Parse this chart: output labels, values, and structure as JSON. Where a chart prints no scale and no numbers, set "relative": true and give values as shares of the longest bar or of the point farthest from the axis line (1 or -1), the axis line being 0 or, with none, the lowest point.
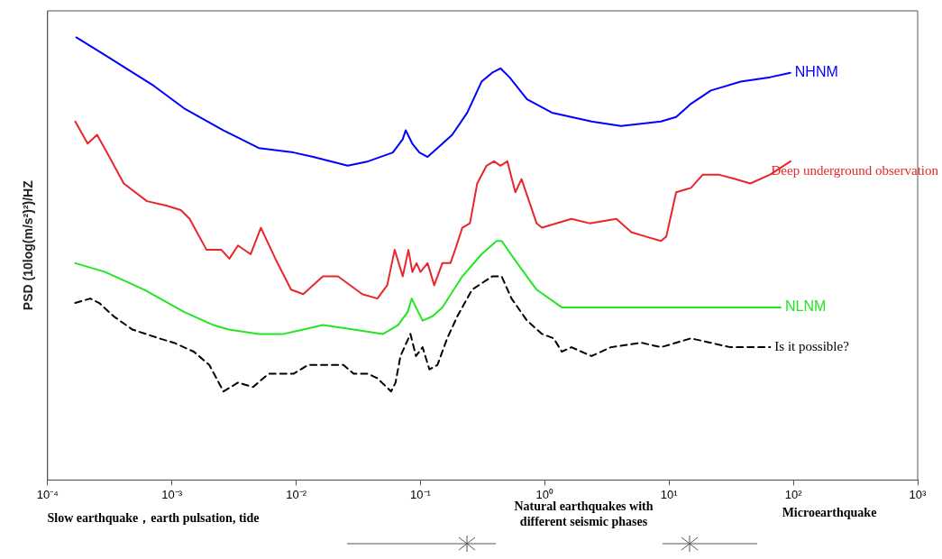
{
  "chart_data": {
    "type": "line",
    "relative": true,
    "ylabel": "PSD (10log(m/s²)²)/HZ",
    "log": "x",
    "grid": false,
    "legend": false,
    "marker": "none",
    "xlim": [
      0.0001,
      1000
    ],
    "xticks": [
      {
        "value": 0.0001,
        "label": "10⁻⁴"
      },
      {
        "value": 0.001,
        "label": "10⁻³"
      },
      {
        "value": 0.01,
        "label": "10⁻²"
      },
      {
        "value": 0.1,
        "label": "10⁻¹"
      },
      {
        "value": 1,
        "label": "10⁰"
      },
      {
        "value": 10,
        "label": "10¹"
      },
      {
        "value": 100,
        "label": "10²"
      },
      {
        "value": 1000,
        "label": "10³"
      }
    ],
    "series": [
      {
        "name": "NHNM",
        "color": "#0000ff",
        "line_style": "solid",
        "x": [
          0.00017,
          0.00029,
          0.00072,
          0.00125,
          0.0026,
          0.005,
          0.0095,
          0.0137,
          0.026,
          0.038,
          0.06,
          0.072,
          0.076,
          0.086,
          0.098,
          0.114,
          0.137,
          0.18,
          0.238,
          0.31,
          0.377,
          0.44,
          0.52,
          0.72,
          1.14,
          2.38,
          4.1,
          8.6,
          11.4,
          15,
          21.7,
          37.7,
          65,
          94.6
        ],
        "values": [
          1.0,
          0.96,
          0.89,
          0.84,
          0.79,
          0.75,
          0.74,
          0.73,
          0.71,
          0.72,
          0.74,
          0.77,
          0.79,
          0.76,
          0.74,
          0.73,
          0.75,
          0.78,
          0.83,
          0.9,
          0.92,
          0.93,
          0.91,
          0.86,
          0.83,
          0.81,
          0.8,
          0.81,
          0.82,
          0.85,
          0.88,
          0.9,
          0.91,
          0.92
        ]
      },
      {
        "name": "Deep underground observation",
        "color": "#e8262b",
        "line_style": "solid",
        "x": [
          0.000167,
          0.00021,
          0.00025,
          0.0003,
          0.00041,
          0.00063,
          0.0009,
          0.00118,
          0.00139,
          0.0019,
          0.0023,
          0.0025,
          0.0029,
          0.0034,
          0.0043,
          0.0052,
          0.0068,
          0.0091,
          0.0114,
          0.0164,
          0.0217,
          0.034,
          0.045,
          0.054,
          0.062,
          0.072,
          0.08,
          0.086,
          0.093,
          0.1,
          0.114,
          0.129,
          0.15,
          0.174,
          0.19,
          0.217,
          0.25,
          0.286,
          0.34,
          0.39,
          0.44,
          0.5,
          0.58,
          0.65,
          0.86,
          0.95,
          1.64,
          2.29,
          3.77,
          4.97,
          6.5,
          8.6,
          9.5,
          11.4,
          15,
          18.7,
          25,
          34,
          45,
          65,
          95
        ],
        "values": [
          0.81,
          0.76,
          0.78,
          0.74,
          0.67,
          0.63,
          0.62,
          0.61,
          0.59,
          0.52,
          0.52,
          0.52,
          0.5,
          0.53,
          0.51,
          0.57,
          0.5,
          0.43,
          0.42,
          0.46,
          0.46,
          0.42,
          0.41,
          0.44,
          0.52,
          0.46,
          0.52,
          0.47,
          0.49,
          0.47,
          0.49,
          0.44,
          0.49,
          0.49,
          0.52,
          0.57,
          0.58,
          0.67,
          0.71,
          0.72,
          0.71,
          0.72,
          0.65,
          0.68,
          0.58,
          0.57,
          0.59,
          0.58,
          0.59,
          0.56,
          0.55,
          0.54,
          0.55,
          0.65,
          0.66,
          0.69,
          0.69,
          0.68,
          0.67,
          0.69,
          0.72
        ]
      },
      {
        "name": "NLNM",
        "color": "#22e622",
        "line_style": "solid",
        "x": [
          0.000167,
          0.00029,
          0.0006,
          0.00125,
          0.00216,
          0.00286,
          0.005,
          0.0079,
          0.0114,
          0.0164,
          0.029,
          0.05,
          0.066,
          0.079,
          0.085,
          0.092,
          0.104,
          0.125,
          0.15,
          0.217,
          0.31,
          0.41,
          0.45,
          0.6,
          0.86,
          1.37,
          2.86,
          18,
          79
        ],
        "values": [
          0.49,
          0.47,
          0.43,
          0.38,
          0.35,
          0.34,
          0.33,
          0.33,
          0.34,
          0.35,
          0.34,
          0.33,
          0.35,
          0.38,
          0.41,
          0.39,
          0.36,
          0.37,
          0.39,
          0.46,
          0.51,
          0.54,
          0.54,
          0.49,
          0.43,
          0.39,
          0.39,
          0.39,
          0.39
        ]
      },
      {
        "name": "Is it possible?",
        "color": "#000000",
        "line_style": "dashed",
        "x": [
          0.000167,
          0.00022,
          0.00026,
          0.00034,
          0.00048,
          0.00079,
          0.00104,
          0.0015,
          0.002,
          0.0026,
          0.0034,
          0.0045,
          0.006,
          0.0076,
          0.0095,
          0.0125,
          0.018,
          0.024,
          0.029,
          0.038,
          0.045,
          0.058,
          0.063,
          0.069,
          0.083,
          0.092,
          0.104,
          0.118,
          0.137,
          0.164,
          0.198,
          0.26,
          0.377,
          0.45,
          0.54,
          0.72,
          0.95,
          1.18,
          1.37,
          1.64,
          2.38,
          3.4,
          6,
          8.6,
          15,
          21.7,
          31,
          65
        ],
        "values": [
          0.4,
          0.41,
          0.4,
          0.37,
          0.34,
          0.32,
          0.31,
          0.29,
          0.26,
          0.2,
          0.22,
          0.21,
          0.24,
          0.24,
          0.24,
          0.26,
          0.26,
          0.26,
          0.24,
          0.24,
          0.23,
          0.2,
          0.22,
          0.28,
          0.33,
          0.28,
          0.3,
          0.25,
          0.26,
          0.32,
          0.37,
          0.43,
          0.46,
          0.46,
          0.41,
          0.36,
          0.33,
          0.32,
          0.29,
          0.3,
          0.28,
          0.3,
          0.31,
          0.3,
          0.32,
          0.31,
          0.3,
          0.3
        ]
      }
    ],
    "annotations": [
      "Slow earthquake，earth pulsation, tide",
      "Natural earthquakes with different seismic phases",
      "Microearthquake"
    ]
  }
}
